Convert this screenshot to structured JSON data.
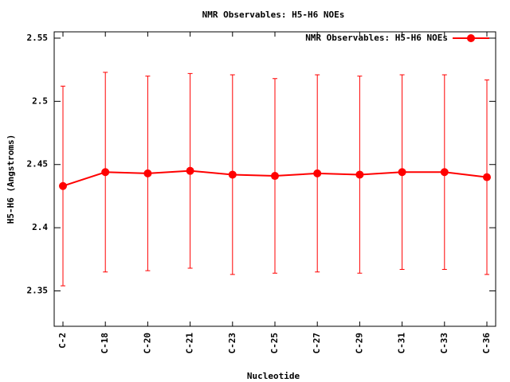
{
  "chart_data": {
    "type": "line",
    "title": "NMR Observables: H5-H6 NOEs",
    "x_label": "Nucleotide",
    "y_label": "H5-H6 (Angstroms)",
    "categories": [
      "C-2",
      "C-18",
      "C-20",
      "C-21",
      "C-23",
      "C-25",
      "C-27",
      "C-29",
      "C-31",
      "C-33",
      "C-36"
    ],
    "series": [
      {
        "name": "NMR Observables: H5-H6 NOEs",
        "color": "#ff0000",
        "values": [
          2.433,
          2.444,
          2.443,
          2.445,
          2.442,
          2.441,
          2.443,
          2.442,
          2.444,
          2.444,
          2.44
        ],
        "errors": [
          0.079,
          0.079,
          0.077,
          0.077,
          0.079,
          0.077,
          0.078,
          0.078,
          0.077,
          0.077,
          0.077
        ]
      }
    ],
    "ylim": [
      2.322,
      2.555
    ],
    "yticks": [
      2.35,
      2.4,
      2.45,
      2.5,
      2.55
    ],
    "legend": "top-right"
  }
}
